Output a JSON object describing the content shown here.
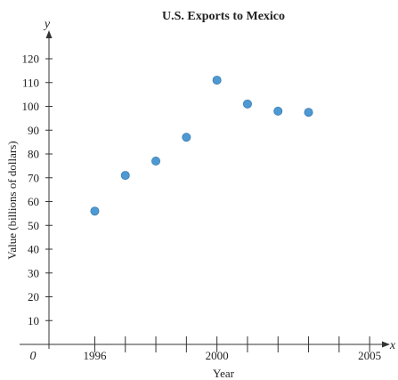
{
  "chart_data": {
    "type": "scatter",
    "title": "U.S. Exports to Mexico",
    "xlabel": "Year",
    "ylabel": "Value (billions of dollars)",
    "x_axis_letter": "x",
    "y_axis_letter": "y",
    "origin_label": "0",
    "xlim": [
      1994.5,
      2006
    ],
    "ylim": [
      0,
      125
    ],
    "x_ticks": [
      1996,
      1997,
      1998,
      1999,
      2000,
      2001,
      2002,
      2003,
      2004,
      2005
    ],
    "x_tick_labels": [
      "1996",
      "2000",
      "2005"
    ],
    "y_ticks": [
      10,
      20,
      30,
      40,
      50,
      60,
      70,
      80,
      90,
      100,
      110,
      120
    ],
    "y_tick_labels": [
      "10",
      "20",
      "30",
      "40",
      "50",
      "60",
      "70",
      "80",
      "90",
      "100",
      "110",
      "120"
    ],
    "points": [
      {
        "x": 1996,
        "y": 56
      },
      {
        "x": 1997,
        "y": 71
      },
      {
        "x": 1998,
        "y": 77
      },
      {
        "x": 1999,
        "y": 87
      },
      {
        "x": 2000,
        "y": 111
      },
      {
        "x": 2001,
        "y": 101
      },
      {
        "x": 2002,
        "y": 98
      },
      {
        "x": 2003,
        "y": 97.5
      }
    ],
    "point_color": "#3a8fd0",
    "grid": false
  }
}
